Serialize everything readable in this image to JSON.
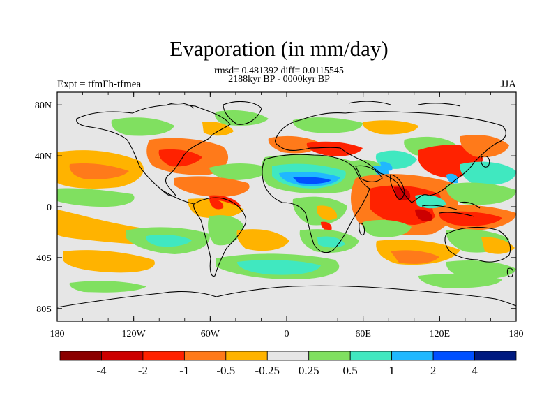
{
  "title": "Evaporation (in mm/day)",
  "stats_line": "rmsd= 0.481392 diff= 0.0115545",
  "period_line": "2188kyr BP - 0000kyr BP",
  "left_label": "Expt = tfmFh-tfmea",
  "right_label": "JJA",
  "map": {
    "lon_ticks": [
      "180",
      "120W",
      "60W",
      "0",
      "60E",
      "120E",
      "180"
    ],
    "lat_ticks": [
      "80N",
      "40N",
      "0",
      "40S",
      "80S"
    ],
    "background_color": "#e6e6e6"
  },
  "colorbar": {
    "colors": [
      "#8b0000",
      "#cc0000",
      "#ff2200",
      "#ff7a1a",
      "#ffb300",
      "#e6e6e6",
      "#80e060",
      "#40e8c0",
      "#20b8ff",
      "#0050ff",
      "#001a80"
    ],
    "labels": [
      "-4",
      "-2",
      "-1",
      "-0.5",
      "-0.25",
      "0.25",
      "0.5",
      "1",
      "2",
      "4"
    ]
  },
  "legend_levels": {
    "dark_red": "#cc0000",
    "red": "#ff2200",
    "orange": "#ff7a1a",
    "yellow": "#ffb300",
    "green": "#80e060",
    "cyan": "#40e8c0",
    "lightblue": "#20b8ff",
    "blue": "#0050ff"
  }
}
